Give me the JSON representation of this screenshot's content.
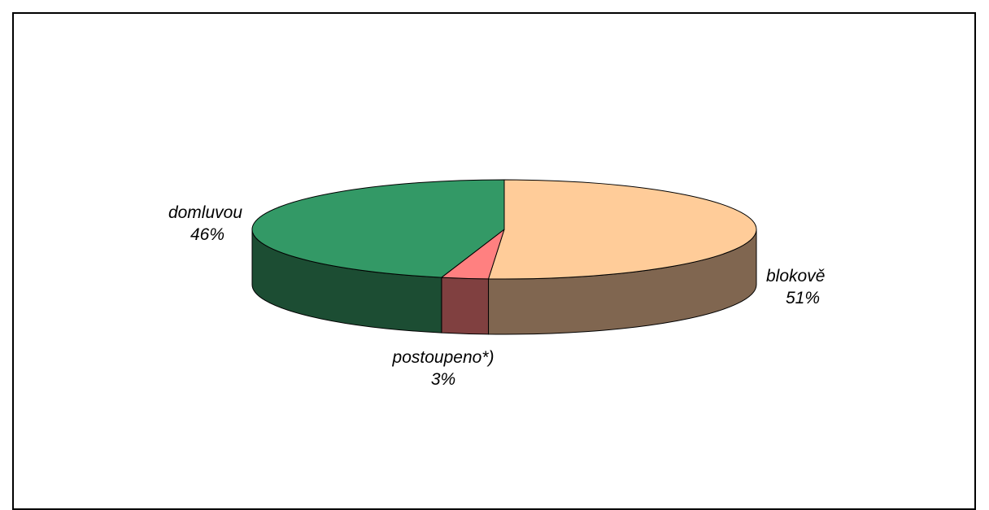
{
  "chart_data": {
    "type": "pie",
    "title": "",
    "three_d": true,
    "slices": [
      {
        "label": "blokově",
        "value": 51,
        "value_label": "51%",
        "top_color": "#FFCC99",
        "side_color": "#806650"
      },
      {
        "label": "postoupeno*)",
        "value": 3,
        "value_label": "3%",
        "top_color": "#FF8080",
        "side_color": "#804040"
      },
      {
        "label": "domluvou",
        "value": 46,
        "value_label": "46%",
        "top_color": "#339966",
        "side_color": "#1C4D33"
      }
    ]
  }
}
